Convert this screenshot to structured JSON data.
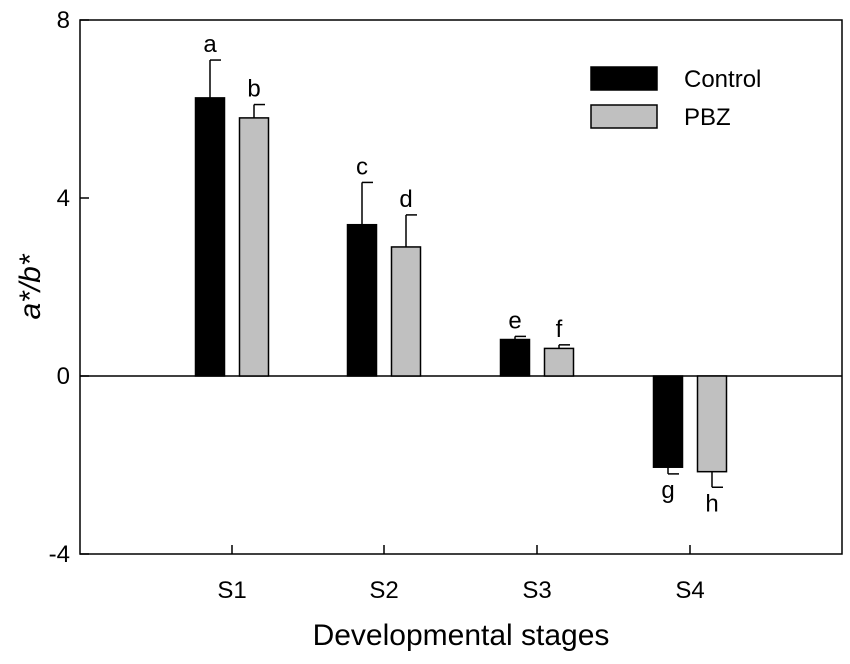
{
  "chart_data": {
    "type": "bar",
    "title": "",
    "xlabel": "Developmental stages",
    "ylabel": "a*/b*",
    "categories": [
      "S1",
      "S2",
      "S3",
      "S4"
    ],
    "ylim": [
      -4,
      8
    ],
    "yticks": [
      -4,
      0,
      4,
      8
    ],
    "legend_position": "top-right",
    "zero_line": true,
    "series": [
      {
        "name": "Control",
        "color": "#000000",
        "values": [
          6.25,
          3.4,
          0.82,
          -2.05
        ],
        "errors": [
          0.85,
          0.95,
          0.07,
          0.15
        ],
        "letters": [
          "a",
          "c",
          "e",
          "g"
        ]
      },
      {
        "name": "PBZ",
        "color": "#c0c0c0",
        "values": [
          5.8,
          2.9,
          0.62,
          -2.15
        ],
        "errors": [
          0.3,
          0.72,
          0.08,
          0.35
        ],
        "letters": [
          "b",
          "d",
          "f",
          "h"
        ]
      }
    ]
  }
}
